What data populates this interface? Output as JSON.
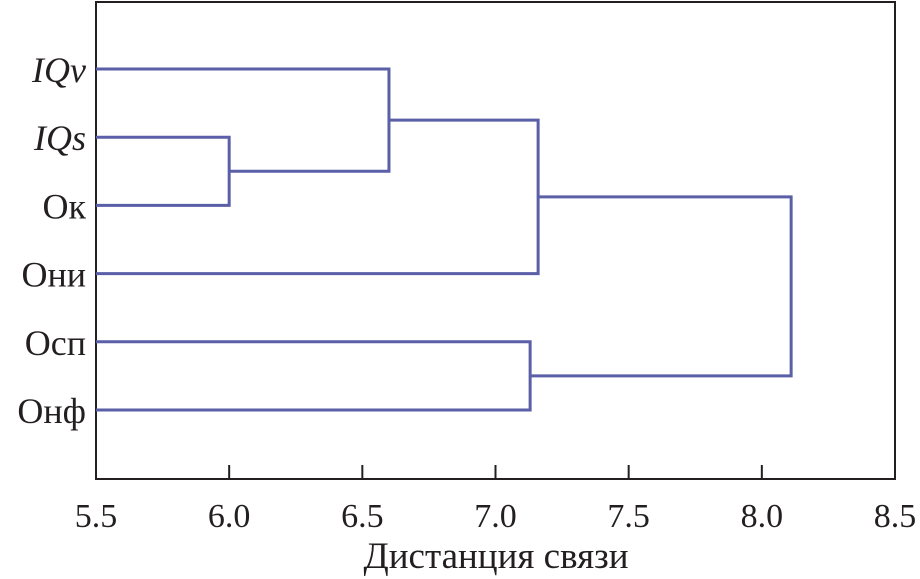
{
  "chart_data": {
    "type": "dendrogram",
    "xlabel": "Дистанция связи",
    "xlim": [
      5.5,
      8.5
    ],
    "xticks": [
      "5.5",
      "6.0",
      "6.5",
      "7.0",
      "7.5",
      "8.0",
      "8.5"
    ],
    "leaves": [
      {
        "label": "IQv",
        "italic": true
      },
      {
        "label": "IQs",
        "italic": true
      },
      {
        "label": "Ок",
        "italic": false
      },
      {
        "label": "Они",
        "italic": false
      },
      {
        "label": "Осп",
        "italic": false
      },
      {
        "label": "Онф",
        "italic": false
      }
    ],
    "merges": [
      {
        "left": "IQs",
        "right": "Ок",
        "distance": 6.0
      },
      {
        "left": "IQv",
        "right": "m1",
        "distance": 6.6
      },
      {
        "left": "m2",
        "right": "Они",
        "distance": 7.16
      },
      {
        "left": "Осп",
        "right": "Онф",
        "distance": 7.13
      },
      {
        "left": "m3",
        "right": "m4",
        "distance": 8.11
      }
    ],
    "line_color": "#5a5fa8",
    "frame_color": "#231f20",
    "grid": false
  }
}
